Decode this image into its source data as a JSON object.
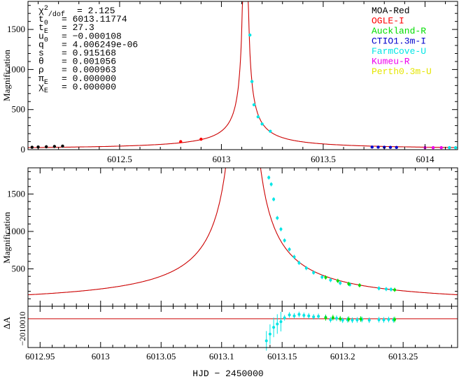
{
  "chart_data": [
    {
      "type": "line",
      "panel": "top",
      "ylabel": "Magnification",
      "xlim": [
        6012.05,
        6014.16
      ],
      "ylim": [
        0,
        1850
      ],
      "xticks": [
        "6012.5",
        "6013",
        "6013.5",
        "6014"
      ],
      "xtick_values": [
        6012.5,
        6013.0,
        6013.5,
        6014.0
      ],
      "yticks": [
        "0",
        "500",
        "1000",
        "1500"
      ],
      "ytick_values": [
        0,
        500,
        1000,
        1500
      ],
      "model_color": "#cc0000",
      "params": [
        {
          "name": "χ²/dof",
          "value": "2.125"
        },
        {
          "name": "t0",
          "value": "6013.11774"
        },
        {
          "name": "tE",
          "value": "27.3"
        },
        {
          "name": "u0",
          "value": "−0.000108"
        },
        {
          "name": "q",
          "value": "4.006249e-06"
        },
        {
          "name": "s",
          "value": "0.915168"
        },
        {
          "name": "θ",
          "value": "0.001056"
        },
        {
          "name": "ρ",
          "value": "0.000963"
        },
        {
          "name": "πE",
          "value": "0.000000"
        },
        {
          "name": "χE",
          "value": "0.000000"
        }
      ],
      "legend": [
        {
          "name": "MOA-Red",
          "color": "#000000"
        },
        {
          "name": "OGLE-I",
          "color": "#ff0000"
        },
        {
          "name": "Auckland-R",
          "color": "#00dd00"
        },
        {
          "name": "CTIO1.3m-I",
          "color": "#0000cc"
        },
        {
          "name": "FarmCove-U",
          "color": "#00e5e5"
        },
        {
          "name": "Kumeu-R",
          "color": "#ee00ee"
        },
        {
          "name": "Perth0.3m-U",
          "color": "#e5e500"
        }
      ],
      "legend_position": "top-right",
      "series": [
        {
          "name": "MOA-Red",
          "points": [
            [
              6012.07,
              30
            ],
            [
              6012.1,
              33
            ],
            [
              6012.14,
              36
            ],
            [
              6012.18,
              40
            ],
            [
              6012.22,
              44
            ]
          ]
        },
        {
          "name": "OGLE-I",
          "points": [
            [
              6012.8,
              100
            ],
            [
              6012.9,
              130
            ]
          ]
        },
        {
          "name": "FarmCove-U",
          "points": [
            [
              6013.14,
              1430
            ],
            [
              6013.15,
              850
            ],
            [
              6013.16,
              560
            ],
            [
              6013.18,
              410
            ],
            [
              6013.2,
              320
            ],
            [
              6013.24,
              230
            ],
            [
              6014.12,
              25
            ],
            [
              6014.15,
              24
            ]
          ]
        },
        {
          "name": "CTIO1.3m-I",
          "points": [
            [
              6013.74,
              32
            ],
            [
              6013.77,
              31
            ],
            [
              6013.8,
              30
            ],
            [
              6013.83,
              29
            ],
            [
              6013.86,
              28
            ]
          ]
        },
        {
          "name": "Kumeu-R",
          "points": [
            [
              6014.0,
              26
            ],
            [
              6014.04,
              25
            ],
            [
              6014.08,
              25
            ]
          ]
        }
      ]
    },
    {
      "type": "line",
      "panel": "middle",
      "ylabel": "Magnification",
      "xlim": [
        6012.94,
        6013.295
      ],
      "ylim": [
        0,
        1850
      ],
      "yticks": [
        "500",
        "1000",
        "1500"
      ],
      "ytick_values": [
        500,
        1000,
        1500
      ],
      "series": [
        {
          "name": "FarmCove-U",
          "points": [
            [
              6013.139,
              1720
            ],
            [
              6013.141,
              1630
            ],
            [
              6013.143,
              1430
            ],
            [
              6013.146,
              1180
            ],
            [
              6013.149,
              1030
            ],
            [
              6013.152,
              880
            ],
            [
              6013.156,
              760
            ],
            [
              6013.16,
              660
            ],
            [
              6013.164,
              580
            ],
            [
              6013.17,
              510
            ],
            [
              6013.176,
              450
            ],
            [
              6013.183,
              390
            ],
            [
              6013.19,
              350
            ],
            [
              6013.198,
              310
            ],
            [
              6013.206,
              290
            ],
            [
              6013.23,
              240
            ],
            [
              6013.236,
              230
            ],
            [
              6013.24,
              225
            ]
          ]
        },
        {
          "name": "Auckland-R",
          "points": [
            [
              6013.186,
              385
            ],
            [
              6013.196,
              340
            ],
            [
              6013.205,
              300
            ],
            [
              6013.214,
              280
            ],
            [
              6013.243,
              220
            ]
          ]
        }
      ]
    },
    {
      "type": "scatter",
      "panel": "residual",
      "ylabel": "ΔA",
      "xlabel": "HJD − 2450000",
      "xlim": [
        6012.94,
        6013.295
      ],
      "xticks": [
        "6012.95",
        "6013",
        "6013.05",
        "6013.1",
        "6013.15",
        "6013.2",
        "6013.25"
      ],
      "xtick_values": [
        6012.95,
        6013.0,
        6013.05,
        6013.1,
        6013.15,
        6013.2,
        6013.25
      ],
      "ylim": [
        -300,
        130
      ],
      "ytick_text": "−2010010",
      "series": [
        {
          "name": "FarmCove-U",
          "points": [
            [
              6013.137,
              -230
            ],
            [
              6013.14,
              -160
            ],
            [
              6013.143,
              -90
            ],
            [
              6013.146,
              -55
            ],
            [
              6013.149,
              -30
            ],
            [
              6013.152,
              10
            ],
            [
              6013.156,
              40
            ],
            [
              6013.16,
              30
            ],
            [
              6013.164,
              45
            ],
            [
              6013.168,
              35
            ],
            [
              6013.172,
              30
            ],
            [
              6013.176,
              20
            ],
            [
              6013.18,
              25
            ],
            [
              6013.186,
              15
            ],
            [
              6013.19,
              -10
            ],
            [
              6013.195,
              5
            ],
            [
              6013.2,
              -15
            ],
            [
              6013.204,
              -10
            ],
            [
              6013.208,
              -15
            ],
            [
              6013.212,
              -12
            ],
            [
              6013.216,
              -8
            ],
            [
              6013.222,
              -15
            ],
            [
              6013.23,
              -10
            ],
            [
              6013.234,
              -12
            ],
            [
              6013.238,
              -8
            ],
            [
              6013.242,
              -12
            ]
          ]
        },
        {
          "name": "Auckland-R",
          "points": [
            [
              6013.186,
              10
            ],
            [
              6013.192,
              12
            ],
            [
              6013.198,
              0
            ],
            [
              6013.205,
              -5
            ],
            [
              6013.215,
              -3
            ],
            [
              6013.243,
              -8
            ]
          ]
        }
      ]
    }
  ]
}
